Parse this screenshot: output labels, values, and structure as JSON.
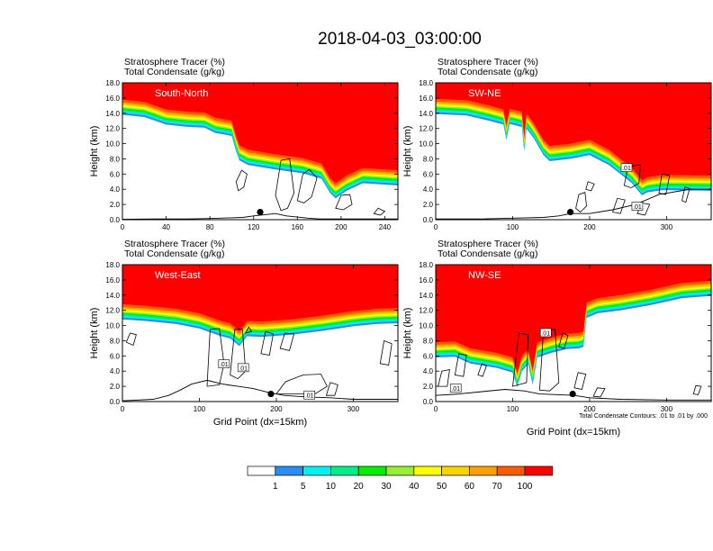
{
  "title": "2018-04-03_03:00:00",
  "colors": {
    "levels": [
      "#ffffff",
      "#2a8cf0",
      "#00f0f0",
      "#00ee88",
      "#00ee00",
      "#99ee33",
      "#ffff00",
      "#f8d400",
      "#ffa000",
      "#ff5a00",
      "#ff0000"
    ],
    "contour": "#000000",
    "panel_label": "#ffffff"
  },
  "colorbar": {
    "labels": [
      "1",
      "5",
      "10",
      "20",
      "30",
      "40",
      "50",
      "60",
      "70",
      "100"
    ]
  },
  "contour_note": "Total Condensate Contours: .01 to .01 by .000",
  "contour_label": ".01",
  "chart_data": [
    {
      "type": "contour",
      "label": "South-North",
      "header": [
        "Stratosphere Tracer   (%)",
        "Total Condensate   (g/kg)"
      ],
      "ylabel": "Height (km)",
      "xlabel": "",
      "xlim": [
        0,
        252
      ],
      "ylim": [
        0,
        18
      ],
      "xticks": [
        0,
        40,
        80,
        120,
        160,
        200,
        240
      ],
      "yticks": [
        "0.0",
        "2.0",
        "4.0",
        "6.0",
        "8.0",
        "10.0",
        "12.0",
        "14.0",
        "16.0",
        "18.0"
      ],
      "tropopause": [
        [
          0,
          15.8
        ],
        [
          20,
          15.5
        ],
        [
          40,
          14.5
        ],
        [
          60,
          14.2
        ],
        [
          75,
          14.1
        ],
        [
          85,
          13.4
        ],
        [
          93,
          13.2
        ],
        [
          100,
          13.0
        ],
        [
          104,
          11.0
        ],
        [
          107,
          9.8
        ],
        [
          115,
          9.2
        ],
        [
          140,
          8.6
        ],
        [
          165,
          8.1
        ],
        [
          182,
          7.4
        ],
        [
          190,
          5.5
        ],
        [
          195,
          4.8
        ],
        [
          205,
          5.8
        ],
        [
          220,
          6.8
        ],
        [
          252,
          6.5
        ]
      ],
      "terrain": [
        [
          0,
          0.05
        ],
        [
          30,
          0.1
        ],
        [
          60,
          0.1
        ],
        [
          80,
          0.15
        ],
        [
          110,
          0.3
        ],
        [
          120,
          0.5
        ],
        [
          140,
          0.8
        ],
        [
          150,
          0.5
        ],
        [
          170,
          0.2
        ],
        [
          180,
          0.1
        ],
        [
          200,
          0.1
        ],
        [
          252,
          0.1
        ]
      ],
      "marker": {
        "x": 126,
        "y": 1.0
      },
      "clouds": [
        [
          [
            104,
            5.0
          ],
          [
            109,
            6.5
          ],
          [
            114,
            6.0
          ],
          [
            111,
            4.3
          ],
          [
            106,
            3.8
          ]
        ],
        [
          [
            140,
            3.2
          ],
          [
            145,
            7.8
          ],
          [
            153,
            8.0
          ],
          [
            157,
            3.5
          ],
          [
            151,
            1.5
          ],
          [
            145,
            1.2
          ]
        ],
        [
          [
            160,
            2.5
          ],
          [
            165,
            6.0
          ],
          [
            171,
            6.6
          ],
          [
            178,
            5.5
          ],
          [
            173,
            3.0
          ],
          [
            166,
            2.2
          ]
        ],
        [
          [
            195,
            1.5
          ],
          [
            200,
            3.2
          ],
          [
            208,
            3.3
          ],
          [
            210,
            2.0
          ],
          [
            202,
            1.3
          ]
        ],
        [
          [
            230,
            0.8
          ],
          [
            234,
            1.5
          ],
          [
            240,
            1.1
          ],
          [
            236,
            0.6
          ]
        ]
      ],
      "labels": []
    },
    {
      "type": "contour",
      "label": "SW-NE",
      "header": [
        "Stratosphere Tracer   (%)",
        "Total Condensate   (g/kg)"
      ],
      "ylabel": "Height (km)",
      "xlabel": "",
      "xlim": [
        0,
        358
      ],
      "ylim": [
        0,
        18
      ],
      "xticks": [
        0,
        100,
        200,
        300
      ],
      "yticks": [
        "0.0",
        "2.0",
        "4.0",
        "6.0",
        "8.0",
        "10.0",
        "12.0",
        "14.0",
        "16.0",
        "18.0"
      ],
      "tropopause": [
        [
          0,
          15.9
        ],
        [
          40,
          15.7
        ],
        [
          70,
          15.0
        ],
        [
          88,
          14.5
        ],
        [
          92,
          12.5
        ],
        [
          96,
          14.6
        ],
        [
          112,
          14.2
        ],
        [
          115,
          11.0
        ],
        [
          118,
          14.0
        ],
        [
          128,
          12.6
        ],
        [
          140,
          10.5
        ],
        [
          148,
          9.7
        ],
        [
          175,
          10.0
        ],
        [
          200,
          10.5
        ],
        [
          225,
          9.2
        ],
        [
          240,
          8.0
        ],
        [
          255,
          6.8
        ],
        [
          268,
          5.2
        ],
        [
          275,
          5.6
        ],
        [
          295,
          5.9
        ],
        [
          358,
          5.8
        ]
      ],
      "terrain": [
        [
          0,
          0.1
        ],
        [
          60,
          0.1
        ],
        [
          100,
          0.2
        ],
        [
          140,
          0.3
        ],
        [
          160,
          0.5
        ],
        [
          175,
          0.8
        ],
        [
          200,
          0.8
        ],
        [
          230,
          1.3
        ],
        [
          260,
          2.0
        ],
        [
          290,
          3.3
        ],
        [
          330,
          4.0
        ],
        [
          358,
          4.0
        ]
      ],
      "marker": {
        "x": 175,
        "y": 1.0
      },
      "clouds": [
        [
          [
            182,
            1.5
          ],
          [
            186,
            3.3
          ],
          [
            194,
            3.6
          ],
          [
            196,
            1.8
          ],
          [
            188,
            1.0
          ]
        ],
        [
          [
            195,
            4.0
          ],
          [
            198,
            5.0
          ],
          [
            206,
            4.7
          ],
          [
            202,
            3.8
          ]
        ],
        [
          [
            230,
            1.0
          ],
          [
            236,
            2.8
          ],
          [
            246,
            2.6
          ],
          [
            240,
            0.8
          ]
        ],
        [
          [
            245,
            4.5
          ],
          [
            250,
            7.0
          ],
          [
            266,
            7.2
          ],
          [
            264,
            4.8
          ],
          [
            254,
            4.2
          ]
        ],
        [
          [
            262,
            0.8
          ],
          [
            268,
            2.2
          ],
          [
            278,
            2.0
          ],
          [
            272,
            0.6
          ]
        ],
        [
          [
            290,
            3.5
          ],
          [
            294,
            6.0
          ],
          [
            304,
            5.8
          ],
          [
            299,
            3.3
          ]
        ],
        [
          [
            320,
            2.5
          ],
          [
            324,
            4.3
          ],
          [
            330,
            4.1
          ],
          [
            325,
            2.3
          ]
        ]
      ],
      "labels": [
        {
          "x": 248,
          "y": 6.8
        },
        {
          "x": 262,
          "y": 1.7
        }
      ]
    },
    {
      "type": "contour",
      "label": "West-East",
      "header": [
        "Stratosphere Tracer   (%)",
        "Total Condensate   (g/kg)"
      ],
      "ylabel": "Height (km)",
      "xlabel": "Grid Point (dx=15km)",
      "xlim": [
        0,
        358
      ],
      "ylim": [
        0,
        18
      ],
      "xticks": [
        0,
        100,
        200,
        300
      ],
      "yticks": [
        "0.0",
        "2.0",
        "4.0",
        "6.0",
        "8.0",
        "10.0",
        "12.0",
        "14.0",
        "16.0",
        "18.0"
      ],
      "tropopause": [
        [
          0,
          12.8
        ],
        [
          30,
          12.6
        ],
        [
          70,
          12.2
        ],
        [
          100,
          11.6
        ],
        [
          128,
          10.6
        ],
        [
          140,
          10.3
        ],
        [
          152,
          9.3
        ],
        [
          162,
          10.6
        ],
        [
          180,
          10.5
        ],
        [
          220,
          10.8
        ],
        [
          260,
          11.3
        ],
        [
          300,
          11.9
        ],
        [
          330,
          12.2
        ],
        [
          358,
          12.3
        ]
      ],
      "terrain": [
        [
          0,
          0.1
        ],
        [
          40,
          0.3
        ],
        [
          60,
          0.8
        ],
        [
          75,
          1.5
        ],
        [
          90,
          2.3
        ],
        [
          110,
          2.8
        ],
        [
          130,
          2.3
        ],
        [
          150,
          2.0
        ],
        [
          170,
          1.7
        ],
        [
          190,
          1.2
        ],
        [
          210,
          0.8
        ],
        [
          240,
          0.6
        ],
        [
          270,
          0.5
        ],
        [
          300,
          0.3
        ],
        [
          358,
          0.3
        ]
      ],
      "marker": {
        "x": 193,
        "y": 1.0
      },
      "clouds": [
        [
          [
            5,
            7.8
          ],
          [
            10,
            9.0
          ],
          [
            18,
            8.8
          ],
          [
            14,
            7.4
          ]
        ],
        [
          [
            110,
            2.0
          ],
          [
            114,
            9.5
          ],
          [
            126,
            9.6
          ],
          [
            132,
            5.0
          ],
          [
            126,
            2.2
          ]
        ],
        [
          [
            140,
            3.5
          ],
          [
            146,
            9.5
          ],
          [
            156,
            9.5
          ],
          [
            160,
            4.0
          ],
          [
            150,
            3.0
          ]
        ],
        [
          [
            160,
            9.0
          ],
          [
            164,
            9.8
          ],
          [
            168,
            9.2
          ]
        ],
        [
          [
            180,
            6.3
          ],
          [
            186,
            9.2
          ],
          [
            196,
            8.9
          ],
          [
            191,
            6.1
          ]
        ],
        [
          [
            205,
            7.0
          ],
          [
            211,
            9.0
          ],
          [
            223,
            8.9
          ],
          [
            217,
            6.7
          ]
        ],
        [
          [
            200,
            1.0
          ],
          [
            212,
            2.6
          ],
          [
            235,
            3.5
          ],
          [
            258,
            3.6
          ],
          [
            266,
            2.0
          ],
          [
            250,
            1.0
          ]
        ],
        [
          [
            265,
            0.8
          ],
          [
            270,
            2.5
          ],
          [
            280,
            2.2
          ],
          [
            276,
            0.8
          ]
        ],
        [
          [
            335,
            5.0
          ],
          [
            340,
            8.0
          ],
          [
            350,
            7.6
          ],
          [
            346,
            4.8
          ]
        ]
      ],
      "labels": [
        {
          "x": 132,
          "y": 4.9
        },
        {
          "x": 157,
          "y": 4.4
        },
        {
          "x": 243,
          "y": 0.8
        }
      ]
    },
    {
      "type": "contour",
      "label": "NW-SE",
      "header": [
        "Stratosphere Tracer   (%)",
        "Total Condensate   (g/kg)"
      ],
      "ylabel": "Height (km)",
      "xlabel": "Grid Point (dx=15km)",
      "xlim": [
        0,
        358
      ],
      "ylim": [
        0,
        18
      ],
      "xticks": [
        0,
        100,
        200,
        300
      ],
      "yticks": [
        "0.0",
        "2.0",
        "4.0",
        "6.0",
        "8.0",
        "10.0",
        "12.0",
        "14.0",
        "16.0",
        "18.0"
      ],
      "tropopause": [
        [
          0,
          7.8
        ],
        [
          25,
          7.9
        ],
        [
          45,
          7.0
        ],
        [
          80,
          6.4
        ],
        [
          100,
          5.8
        ],
        [
          106,
          3.9
        ],
        [
          112,
          6.0
        ],
        [
          120,
          6.9
        ],
        [
          126,
          4.2
        ],
        [
          132,
          7.8
        ],
        [
          150,
          8.4
        ],
        [
          170,
          8.9
        ],
        [
          186,
          9.0
        ],
        [
          192,
          9.2
        ],
        [
          196,
          13.0
        ],
        [
          210,
          13.6
        ],
        [
          240,
          14.0
        ],
        [
          280,
          14.7
        ],
        [
          320,
          15.6
        ],
        [
          358,
          15.9
        ]
      ],
      "terrain": [
        [
          0,
          0.8
        ],
        [
          30,
          1.0
        ],
        [
          60,
          1.3
        ],
        [
          90,
          1.6
        ],
        [
          115,
          1.4
        ],
        [
          135,
          1.0
        ],
        [
          160,
          0.9
        ],
        [
          180,
          0.8
        ],
        [
          200,
          0.5
        ],
        [
          240,
          0.3
        ],
        [
          300,
          0.2
        ],
        [
          358,
          0.2
        ]
      ],
      "marker": {
        "x": 178,
        "y": 1.0
      },
      "clouds": [
        [
          [
            3,
            2.0
          ],
          [
            8,
            4.0
          ],
          [
            18,
            4.2
          ],
          [
            15,
            2.0
          ]
        ],
        [
          [
            25,
            3.5
          ],
          [
            30,
            6.3
          ],
          [
            40,
            6.1
          ],
          [
            36,
            3.3
          ]
        ],
        [
          [
            55,
            3.5
          ],
          [
            60,
            5.0
          ],
          [
            66,
            4.7
          ],
          [
            61,
            3.3
          ]
        ],
        [
          [
            100,
            2.0
          ],
          [
            108,
            9.0
          ],
          [
            120,
            8.8
          ],
          [
            118,
            2.5
          ]
        ],
        [
          [
            135,
            1.5
          ],
          [
            140,
            9.3
          ],
          [
            155,
            9.5
          ],
          [
            160,
            2.5
          ],
          [
            148,
            1.4
          ]
        ],
        [
          [
            160,
            7.2
          ],
          [
            165,
            9.0
          ],
          [
            172,
            8.7
          ],
          [
            167,
            7.0
          ]
        ],
        [
          [
            180,
            1.8
          ],
          [
            185,
            3.8
          ],
          [
            195,
            3.6
          ],
          [
            190,
            1.6
          ]
        ],
        [
          [
            205,
            0.7
          ],
          [
            210,
            1.8
          ],
          [
            220,
            1.7
          ],
          [
            214,
            0.6
          ]
        ],
        [
          [
            335,
            1.0
          ],
          [
            338,
            2.1
          ],
          [
            345,
            2.0
          ],
          [
            341,
            0.9
          ]
        ]
      ],
      "labels": [
        {
          "x": 143,
          "y": 9.0
        },
        {
          "x": 26,
          "y": 1.7
        }
      ]
    }
  ]
}
